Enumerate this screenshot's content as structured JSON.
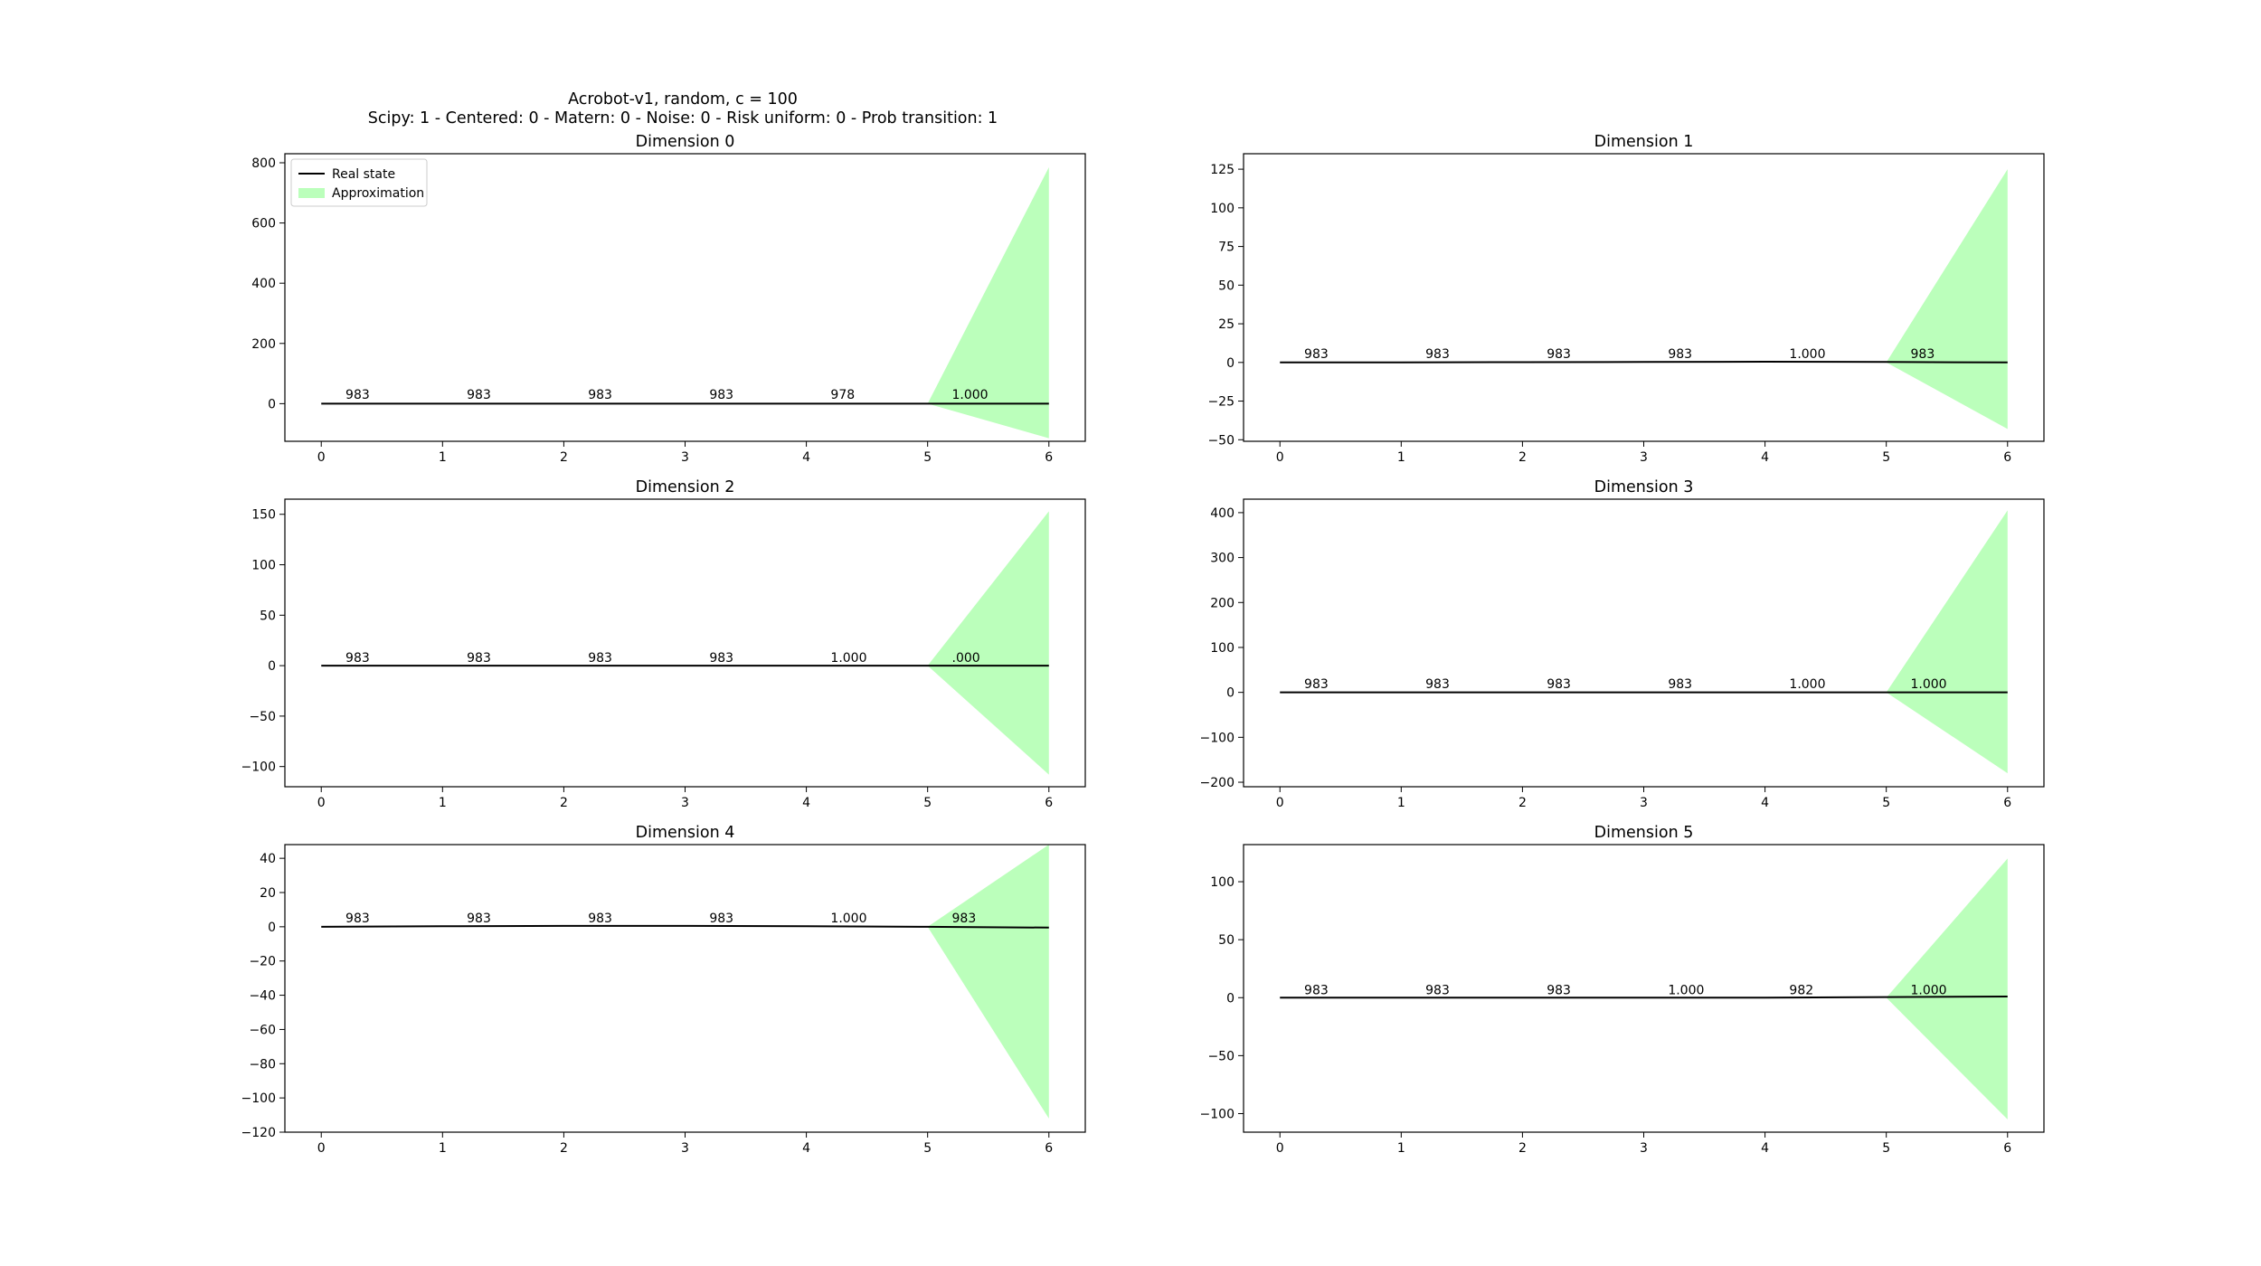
{
  "figure": {
    "suptitle_line1": "Acrobot-v1, random, c = 100",
    "suptitle_line2": "Scipy: 1 - Centered: 0 - Matern: 0 - Noise: 0 - Risk uniform: 0 - Prob transition: 1"
  },
  "legend": {
    "real_label": "Real state",
    "approx_label": "Approximation"
  },
  "colors": {
    "real_line": "#000000",
    "approximation_fill": "#bbffbb"
  },
  "chart_data": [
    {
      "type": "line",
      "title": "Dimension 0",
      "x": [
        0,
        1,
        2,
        3,
        4,
        5,
        6
      ],
      "xlim": [
        -0.3,
        6.3
      ],
      "ylim": [
        -125,
        830
      ],
      "yticks": [
        0,
        200,
        400,
        600,
        800
      ],
      "xticks": [
        0,
        1,
        2,
        3,
        4,
        5,
        6
      ],
      "series": [
        {
          "name": "Real state",
          "values": [
            0,
            0,
            0,
            0,
            0,
            0,
            0
          ]
        }
      ],
      "approximation": {
        "name": "Approximation",
        "x": [
          5,
          6
        ],
        "lower": [
          0,
          -115
        ],
        "upper": [
          0,
          785
        ]
      },
      "annotations": [
        {
          "x": 0.2,
          "y": 10,
          "text": "983"
        },
        {
          "x": 1.2,
          "y": 10,
          "text": "983"
        },
        {
          "x": 2.2,
          "y": 10,
          "text": "983"
        },
        {
          "x": 3.2,
          "y": 10,
          "text": "983"
        },
        {
          "x": 4.2,
          "y": 10,
          "text": "978"
        },
        {
          "x": 5.2,
          "y": 10,
          "text": "1.000"
        }
      ],
      "legend": "upper left"
    },
    {
      "type": "line",
      "title": "Dimension 1",
      "x": [
        0,
        1,
        2,
        3,
        4,
        5,
        6
      ],
      "xlim": [
        -0.3,
        6.3
      ],
      "ylim": [
        -51,
        135
      ],
      "yticks": [
        -50,
        -25,
        0,
        25,
        50,
        75,
        100,
        125
      ],
      "xticks": [
        0,
        1,
        2,
        3,
        4,
        5,
        6
      ],
      "series": [
        {
          "name": "Real state",
          "values": [
            0,
            0,
            0.2,
            0.3,
            0.5,
            0.3,
            0
          ]
        }
      ],
      "approximation": {
        "name": "Approximation",
        "x": [
          5,
          6
        ],
        "lower": [
          0,
          -43
        ],
        "upper": [
          0,
          125
        ]
      },
      "annotations": [
        {
          "x": 0.2,
          "y": 1.5,
          "text": "983"
        },
        {
          "x": 1.2,
          "y": 1.5,
          "text": "983"
        },
        {
          "x": 2.2,
          "y": 1.5,
          "text": "983"
        },
        {
          "x": 3.2,
          "y": 1.5,
          "text": "983"
        },
        {
          "x": 4.2,
          "y": 1.5,
          "text": "1.000"
        },
        {
          "x": 5.2,
          "y": 1.5,
          "text": "983"
        }
      ]
    },
    {
      "type": "line",
      "title": "Dimension 2",
      "x": [
        0,
        1,
        2,
        3,
        4,
        5,
        6
      ],
      "xlim": [
        -0.3,
        6.3
      ],
      "ylim": [
        -120,
        165
      ],
      "yticks": [
        -100,
        -50,
        0,
        50,
        100,
        150
      ],
      "xticks": [
        0,
        1,
        2,
        3,
        4,
        5,
        6
      ],
      "series": [
        {
          "name": "Real state",
          "values": [
            0,
            0,
            0,
            0,
            0,
            0,
            0
          ]
        }
      ],
      "approximation": {
        "name": "Approximation",
        "x": [
          5,
          6
        ],
        "lower": [
          0,
          -108
        ],
        "upper": [
          0,
          153
        ]
      },
      "annotations": [
        {
          "x": 0.2,
          "y": 2,
          "text": "983"
        },
        {
          "x": 1.2,
          "y": 2,
          "text": "983"
        },
        {
          "x": 2.2,
          "y": 2,
          "text": "983"
        },
        {
          "x": 3.2,
          "y": 2,
          "text": "983"
        },
        {
          "x": 4.2,
          "y": 2,
          "text": "1.000"
        },
        {
          "x": 5.2,
          "y": 2,
          "text": ".000"
        }
      ]
    },
    {
      "type": "line",
      "title": "Dimension 3",
      "x": [
        0,
        1,
        2,
        3,
        4,
        5,
        6
      ],
      "xlim": [
        -0.3,
        6.3
      ],
      "ylim": [
        -210,
        430
      ],
      "yticks": [
        -200,
        -100,
        0,
        100,
        200,
        300,
        400
      ],
      "xticks": [
        0,
        1,
        2,
        3,
        4,
        5,
        6
      ],
      "series": [
        {
          "name": "Real state",
          "values": [
            0,
            0,
            0,
            0,
            0,
            0,
            0
          ]
        }
      ],
      "approximation": {
        "name": "Approximation",
        "x": [
          5,
          6
        ],
        "lower": [
          0,
          -180
        ],
        "upper": [
          0,
          405
        ]
      },
      "annotations": [
        {
          "x": 0.2,
          "y": 5,
          "text": "983"
        },
        {
          "x": 1.2,
          "y": 5,
          "text": "983"
        },
        {
          "x": 2.2,
          "y": 5,
          "text": "983"
        },
        {
          "x": 3.2,
          "y": 5,
          "text": "983"
        },
        {
          "x": 4.2,
          "y": 5,
          "text": "1.000"
        },
        {
          "x": 5.2,
          "y": 5,
          "text": "1.000"
        }
      ]
    },
    {
      "type": "line",
      "title": "Dimension 4",
      "x": [
        0,
        1,
        2,
        3,
        4,
        5,
        6
      ],
      "xlim": [
        -0.3,
        6.3
      ],
      "ylim": [
        -120,
        48
      ],
      "yticks": [
        -120,
        -100,
        -80,
        -60,
        -40,
        -20,
        0,
        20,
        40
      ],
      "xticks": [
        0,
        1,
        2,
        3,
        4,
        5,
        6
      ],
      "series": [
        {
          "name": "Real state",
          "values": [
            0,
            0.3,
            0.5,
            0.5,
            0.3,
            0,
            -0.5
          ]
        }
      ],
      "approximation": {
        "name": "Approximation",
        "x": [
          5,
          6
        ],
        "lower": [
          0,
          -112
        ],
        "upper": [
          0,
          48
        ]
      },
      "annotations": [
        {
          "x": 0.2,
          "y": 1.5,
          "text": "983"
        },
        {
          "x": 1.2,
          "y": 1.5,
          "text": "983"
        },
        {
          "x": 2.2,
          "y": 1.5,
          "text": "983"
        },
        {
          "x": 3.2,
          "y": 1.5,
          "text": "983"
        },
        {
          "x": 4.2,
          "y": 1.5,
          "text": "1.000"
        },
        {
          "x": 5.2,
          "y": 1.5,
          "text": "983"
        }
      ]
    },
    {
      "type": "line",
      "title": "Dimension 5",
      "x": [
        0,
        1,
        2,
        3,
        4,
        5,
        6
      ],
      "xlim": [
        -0.3,
        6.3
      ],
      "ylim": [
        -116,
        132
      ],
      "yticks": [
        -100,
        -50,
        0,
        50,
        100
      ],
      "xticks": [
        0,
        1,
        2,
        3,
        4,
        5,
        6
      ],
      "series": [
        {
          "name": "Real state",
          "values": [
            0,
            0,
            0,
            0,
            0,
            0.5,
            1
          ]
        }
      ],
      "approximation": {
        "name": "Approximation",
        "x": [
          5,
          6
        ],
        "lower": [
          0,
          -105
        ],
        "upper": [
          0,
          120
        ]
      },
      "annotations": [
        {
          "x": 0.2,
          "y": 1.5,
          "text": "983"
        },
        {
          "x": 1.2,
          "y": 1.5,
          "text": "983"
        },
        {
          "x": 2.2,
          "y": 1.5,
          "text": "983"
        },
        {
          "x": 3.2,
          "y": 1.5,
          "text": "1.000"
        },
        {
          "x": 4.2,
          "y": 1.5,
          "text": "982"
        },
        {
          "x": 5.2,
          "y": 1.5,
          "text": "1.000"
        }
      ]
    }
  ]
}
